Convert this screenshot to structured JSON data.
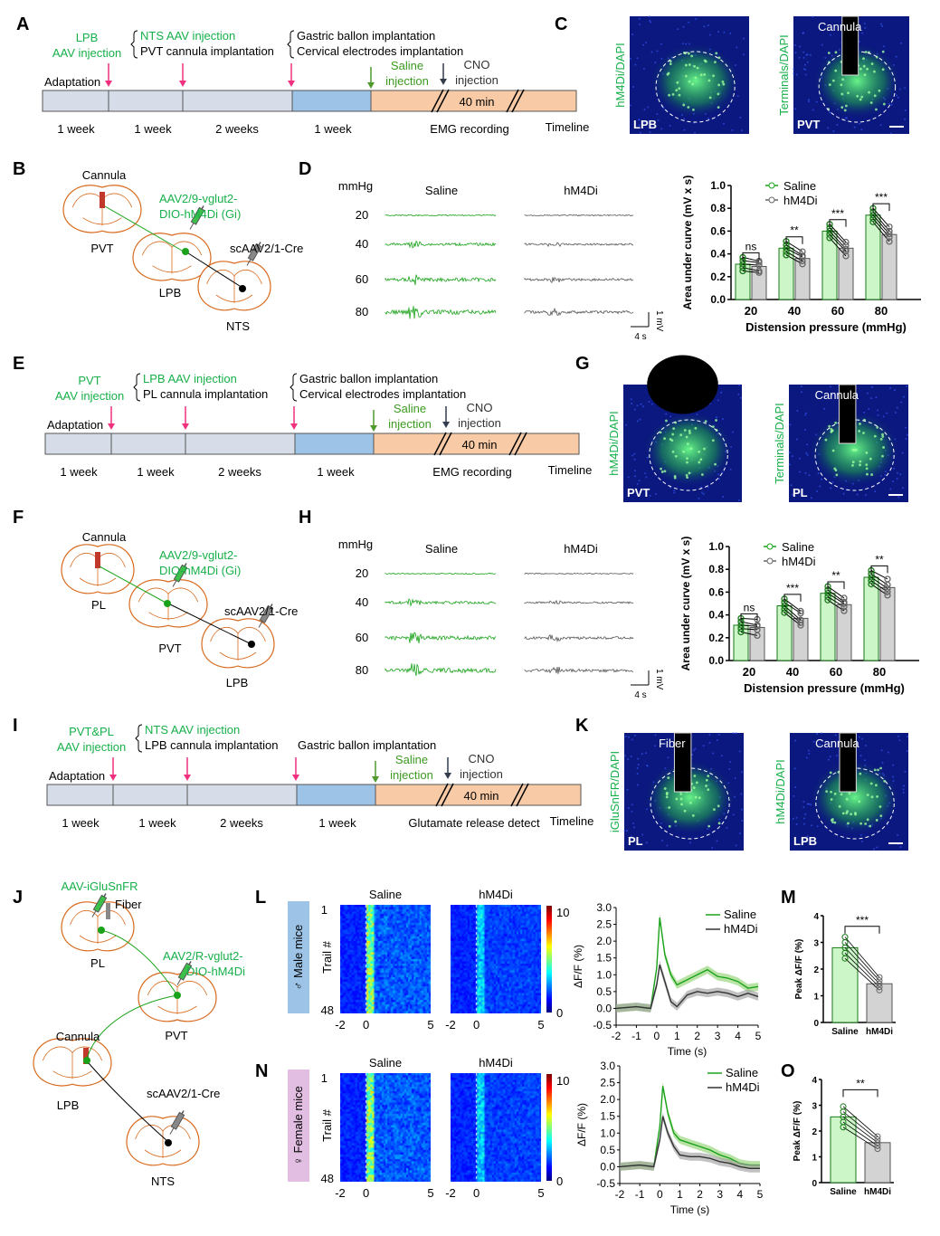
{
  "panel_letters": [
    "A",
    "B",
    "C",
    "D",
    "E",
    "F",
    "G",
    "H",
    "I",
    "J",
    "K",
    "L",
    "M",
    "N",
    "O"
  ],
  "timelines": [
    {
      "left_top": "LPB",
      "left_bottom": "AAV injection",
      "mid_top": "NTS AAV injection",
      "mid_bottom": "PVT cannula implantation",
      "right_top": "Gastric ballon implantation",
      "right_bottom": "Cervical electrodes implantation",
      "adaptation": "Adaptation",
      "saline_1": "Saline",
      "saline_2": "injection",
      "cno_1": "CNO",
      "cno_2": "injection",
      "duration": "40 min",
      "stages": [
        "1 week",
        "1 week",
        "2 weeks",
        "1 week"
      ],
      "recording": "EMG recording",
      "timeline": "Timeline"
    },
    {
      "left_top": "PVT",
      "left_bottom": "AAV injection",
      "mid_top": "LPB AAV injection",
      "mid_bottom": "PL cannula implantation",
      "right_top": "Gastric ballon implantation",
      "right_bottom": "Cervical electrodes implantation",
      "adaptation": "Adaptation",
      "saline_1": "Saline",
      "saline_2": "injection",
      "cno_1": "CNO",
      "cno_2": "injection",
      "duration": "40 min",
      "stages": [
        "1 week",
        "1 week",
        "2 weeks",
        "1 week"
      ],
      "recording": "EMG recording",
      "timeline": "Timeline"
    },
    {
      "left_top": "PVT&PL",
      "left_bottom": "AAV injection",
      "mid_top": "NTS AAV injection",
      "mid_bottom": "LPB cannula implantation",
      "right_top": "",
      "right_bottom": "Gastric ballon implantation",
      "adaptation": "Adaptation",
      "saline_1": "Saline",
      "saline_2": "injection",
      "cno_1": "CNO",
      "cno_2": "injection",
      "duration": "40 min",
      "stages": [
        "1 week",
        "1 week",
        "2 weeks",
        "1 week"
      ],
      "recording": "Glutamate release detect",
      "timeline": "Timeline"
    }
  ],
  "schematics": {
    "B": {
      "cannula": "Cannula",
      "virus_1": "AAV2/9-vglut2-",
      "virus_2": "DIO-hM4Di (Gi)",
      "cre": "scAAV2/1-Cre",
      "regions": [
        "PVT",
        "LPB",
        "NTS"
      ]
    },
    "F": {
      "cannula": "Cannula",
      "virus_1": "AAV2/9-vglut2-",
      "virus_2": "DIO-hM4Di (Gi)",
      "cre": "scAAV2/1-Cre",
      "regions": [
        "PL",
        "PVT",
        "LPB"
      ]
    },
    "J": {
      "virus_top": "AAV-iGluSnFR",
      "fiber": "Fiber",
      "virus_1": "AAV2/R-vglut2-",
      "virus_2": "DIO-hM4Di",
      "cannula": "Cannula",
      "cre": "scAAV2/1-Cre",
      "regions": [
        "PL",
        "PVT",
        "LPB",
        "NTS"
      ]
    }
  },
  "images": {
    "C": [
      {
        "side": "hM4Di/DAPI",
        "corner": "LPB",
        "top": ""
      },
      {
        "side": "Terminals/DAPI",
        "corner": "PVT",
        "top": "Cannula"
      }
    ],
    "G": [
      {
        "side": "hM4Di/DAPI",
        "corner": "PVT",
        "top": ""
      },
      {
        "side": "Terminals/DAPI",
        "corner": "PL",
        "top": "Cannula"
      }
    ],
    "K": [
      {
        "side": "iGluSnFR/DAPI",
        "corner": "PL",
        "top": "Fiber"
      },
      {
        "side": "hM4Di/DAPI",
        "corner": "LPB",
        "top": "Cannula"
      }
    ]
  },
  "emg": {
    "D": {
      "unit": "mmHg",
      "groups": [
        "Saline",
        "hM4Di"
      ],
      "pressures": [
        "20",
        "40",
        "60",
        "80"
      ],
      "scale_v": "1 mV",
      "scale_t": "4 s"
    },
    "H": {
      "unit": "mmHg",
      "groups": [
        "Saline",
        "hM4Di"
      ],
      "pressures": [
        "20",
        "40",
        "60",
        "80"
      ],
      "scale_v": "1 mV",
      "scale_t": "4 s"
    }
  },
  "heatmaps": {
    "L": {
      "side_label": "♂ Male mice",
      "ylabel": "Trail #",
      "groups": [
        "Saline",
        "hM4Di"
      ],
      "y_ticks": [
        "1",
        "48"
      ],
      "x_ticks": [
        "-2",
        "0",
        "5"
      ],
      "cbar": [
        "10",
        "0"
      ]
    },
    "N": {
      "side_label": "♀ Female mice",
      "ylabel": "Trail #",
      "groups": [
        "Saline",
        "hM4Di"
      ],
      "y_ticks": [
        "1",
        "48"
      ],
      "x_ticks": [
        "-2",
        "0",
        "5"
      ],
      "cbar": [
        "10",
        "0"
      ]
    }
  },
  "colors": {
    "saline": "#1aa31a",
    "saline_fill": "#ccf5c8",
    "hm4di": "#444444",
    "hm4di_fill": "#d3d3d3",
    "pink": "#f0307f",
    "green_text": "#17b04a",
    "orange": "#d86a1e",
    "peach": "#f8cba6",
    "blue_seg": "#9dc3e6",
    "gray_seg": "#d6dde8"
  },
  "chart_data": [
    {
      "id": "D",
      "type": "bar",
      "categories": [
        "20",
        "40",
        "60",
        "80"
      ],
      "xlabel": "Distension pressure (mmHg)",
      "ylabel": "Area under curve (mV x s)",
      "ylim": [
        0,
        1.0
      ],
      "yticks": [
        "0.0",
        "0.2",
        "0.4",
        "0.6",
        "0.8",
        "1.0"
      ],
      "series": [
        {
          "name": "Saline",
          "values": [
            0.31,
            0.45,
            0.6,
            0.74
          ]
        },
        {
          "name": "hM4Di",
          "values": [
            0.29,
            0.36,
            0.45,
            0.57
          ]
        }
      ],
      "significance": [
        "ns",
        "**",
        "***",
        "***"
      ],
      "legend": "top-left"
    },
    {
      "id": "H",
      "type": "bar",
      "categories": [
        "20",
        "40",
        "60",
        "80"
      ],
      "xlabel": "Distension pressure (mmHg)",
      "ylabel": "Area under curve (mV x s)",
      "ylim": [
        0,
        1.0
      ],
      "yticks": [
        "0.0",
        "0.2",
        "0.4",
        "0.6",
        "0.8",
        "1.0"
      ],
      "series": [
        {
          "name": "Saline",
          "values": [
            0.31,
            0.48,
            0.59,
            0.73
          ]
        },
        {
          "name": "hM4Di",
          "values": [
            0.29,
            0.37,
            0.49,
            0.64
          ]
        }
      ],
      "significance": [
        "ns",
        "***",
        "**",
        "**"
      ],
      "legend": "top-left"
    },
    {
      "id": "L",
      "type": "line",
      "xlabel": "Time (s)",
      "ylabel": "ΔF/F (%)",
      "xlim": [
        -2,
        5
      ],
      "ylim": [
        -0.5,
        3.0
      ],
      "xticks": [
        "-2",
        "-1",
        "0",
        "1",
        "2",
        "3",
        "4",
        "5"
      ],
      "yticks": [
        "-0.5",
        "0.0",
        "0.5",
        "1.0",
        "1.5",
        "2.0",
        "2.5",
        "3.0"
      ],
      "series": [
        {
          "name": "Saline",
          "x": [
            -2,
            -1,
            -0.3,
            0,
            0.15,
            0.4,
            0.7,
            1,
            1.5,
            2,
            2.5,
            3,
            3.5,
            4,
            4.5,
            5
          ],
          "y": [
            0,
            0.05,
            0,
            1.2,
            2.7,
            1.6,
            1.0,
            0.7,
            0.85,
            1.0,
            1.15,
            0.95,
            0.9,
            0.8,
            0.6,
            0.65
          ]
        },
        {
          "name": "hM4Di",
          "x": [
            -2,
            -1,
            -0.3,
            0,
            0.15,
            0.4,
            0.7,
            1,
            1.5,
            2,
            2.5,
            3,
            3.5,
            4,
            4.5,
            5
          ],
          "y": [
            0,
            0.05,
            0,
            0.7,
            1.3,
            0.8,
            0.2,
            0.05,
            0.4,
            0.5,
            0.45,
            0.5,
            0.45,
            0.35,
            0.45,
            0.35
          ]
        }
      ],
      "legend": "top-right"
    },
    {
      "id": "N",
      "type": "line",
      "xlabel": "Time (s)",
      "ylabel": "ΔF/F (%)",
      "xlim": [
        -2,
        5
      ],
      "ylim": [
        -0.5,
        3.0
      ],
      "xticks": [
        "-2",
        "-1",
        "0",
        "1",
        "2",
        "3",
        "4",
        "5"
      ],
      "yticks": [
        "-0.5",
        "0.0",
        "0.5",
        "1.0",
        "1.5",
        "2.0",
        "2.5",
        "3.0"
      ],
      "series": [
        {
          "name": "Saline",
          "x": [
            -2,
            -1,
            -0.3,
            0,
            0.15,
            0.4,
            0.7,
            1,
            1.5,
            2,
            2.5,
            3,
            3.5,
            4,
            4.5,
            5
          ],
          "y": [
            0,
            0.05,
            0,
            1.2,
            2.4,
            1.6,
            1.0,
            0.8,
            0.7,
            0.6,
            0.5,
            0.35,
            0.25,
            0.1,
            0.05,
            0.05
          ]
        },
        {
          "name": "hM4Di",
          "x": [
            -2,
            -1,
            -0.3,
            0,
            0.15,
            0.4,
            0.7,
            1,
            1.5,
            2,
            2.5,
            3,
            3.5,
            4,
            4.5,
            5
          ],
          "y": [
            0,
            0.05,
            0,
            0.8,
            1.5,
            1.0,
            0.6,
            0.35,
            0.3,
            0.3,
            0.25,
            0.15,
            0.1,
            0.0,
            -0.05,
            -0.05
          ]
        }
      ],
      "legend": "top-right"
    },
    {
      "id": "M",
      "type": "bar",
      "categories": [
        "Saline",
        "hM4Di"
      ],
      "values": [
        2.8,
        1.45
      ],
      "ylabel": "Peak ΔF/F (%)",
      "ylim": [
        0,
        4
      ],
      "yticks": [
        "0",
        "1",
        "2",
        "3",
        "4"
      ],
      "significance": "***"
    },
    {
      "id": "O",
      "type": "bar",
      "categories": [
        "Saline",
        "hM4Di"
      ],
      "values": [
        2.55,
        1.55
      ],
      "ylabel": "Peak ΔF/F (%)",
      "ylim": [
        0,
        4
      ],
      "yticks": [
        "0",
        "1",
        "2",
        "3",
        "4"
      ],
      "significance": "**"
    }
  ]
}
